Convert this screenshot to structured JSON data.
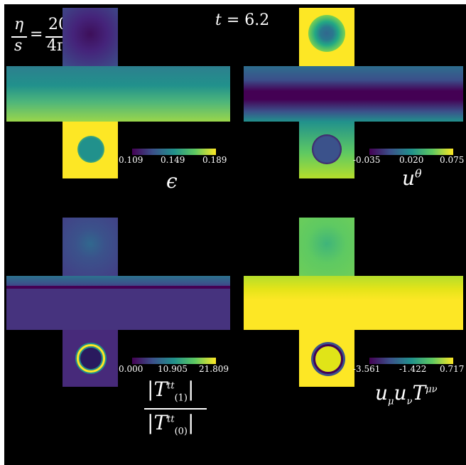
{
  "figure": {
    "time_symbol": "t",
    "time_value": "6.2",
    "eta_symbol": "η",
    "s_symbol": "s",
    "numerator": "20",
    "denominator": "4π"
  },
  "colormap": [
    "#440154",
    "#3b528b",
    "#21918c",
    "#5ec962",
    "#fde725"
  ],
  "panels": [
    {
      "ticks": [
        "0.109",
        "0.149",
        "0.189"
      ],
      "label": "ϵ"
    },
    {
      "ticks": [
        "-0.035",
        "0.020",
        "0.075"
      ],
      "label_base": "u",
      "label_sup": "θ"
    },
    {
      "ticks": [
        "0.000",
        "10.905",
        "21.809"
      ],
      "num_base": "T",
      "num_sub": "(1)",
      "den_base": "T",
      "den_sub": "(0)",
      "sup": "tt"
    },
    {
      "ticks": [
        "-3.561",
        "-1.422",
        "0.717"
      ],
      "u": "u",
      "mu": "μ",
      "nu": "ν",
      "T": "T",
      "T_sup": "μν"
    }
  ]
}
